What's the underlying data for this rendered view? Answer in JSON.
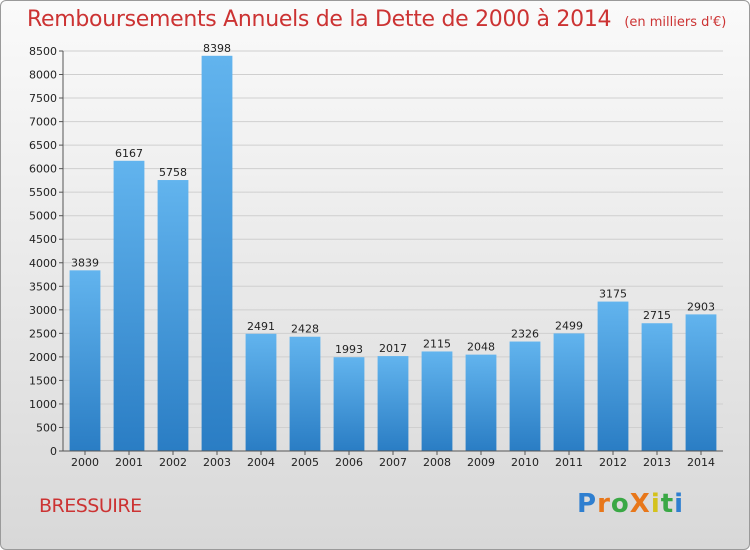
{
  "title": "Remboursements Annuels de la Dette de 2000 à 2014",
  "subtitle": "(en milliers d'€)",
  "place": "BRESSUIRE",
  "brand": "ProXiti",
  "colors": {
    "title": "#cc3333",
    "bar_top": "#62b4ee",
    "bar_bottom": "#2a7dc4"
  },
  "chart_data": {
    "type": "bar",
    "title": "Remboursements Annuels de la Dette de 2000 à 2014",
    "subtitle": "(en milliers d'€)",
    "categories": [
      "2000",
      "2001",
      "2002",
      "2003",
      "2004",
      "2005",
      "2006",
      "2007",
      "2008",
      "2009",
      "2010",
      "2011",
      "2012",
      "2013",
      "2014"
    ],
    "values": [
      3839,
      6167,
      5758,
      8398,
      2491,
      2428,
      1993,
      2017,
      2115,
      2048,
      2326,
      2499,
      3175,
      2715,
      2903
    ],
    "ylim": [
      0,
      8500
    ],
    "yticks": [
      0,
      500,
      1000,
      1500,
      2000,
      2500,
      3000,
      3500,
      4000,
      4500,
      5000,
      5500,
      6000,
      6500,
      7000,
      7500,
      8000,
      8500
    ],
    "grid": true,
    "data_labels": true
  }
}
